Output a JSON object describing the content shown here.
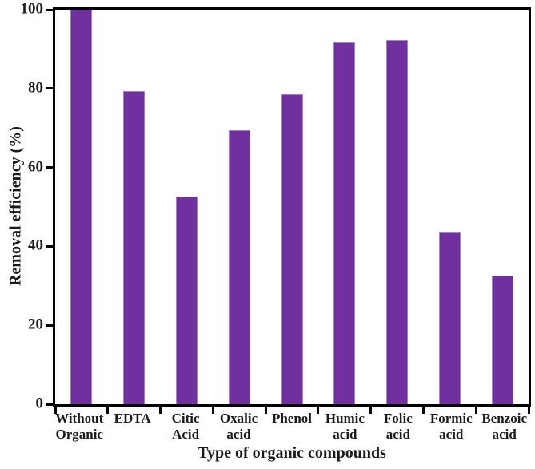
{
  "chart_data": {
    "type": "bar",
    "title": "",
    "xlabel": "Type of organic compounds",
    "ylabel": "Removal efficiency (%)",
    "categories": [
      "Without\nOrganic",
      "EDTA",
      "Citic\nAcid",
      "Oxalic\nacid",
      "Phenol",
      "Humic\nacid",
      "Folic\nacid",
      "Formic\nacid",
      "Benzoic\nacid"
    ],
    "values": [
      100,
      79.3,
      52.7,
      69.5,
      78.5,
      91.8,
      92.3,
      43.7,
      32.6
    ],
    "ylim": [
      0,
      100
    ],
    "yticks": [
      "0",
      "20",
      "40",
      "60",
      "80",
      "100"
    ],
    "grid": false,
    "legend_position": "none",
    "bar_color": "#7030A0",
    "bar_edge_color": "#A27FC9",
    "axis_color": "#000000"
  }
}
